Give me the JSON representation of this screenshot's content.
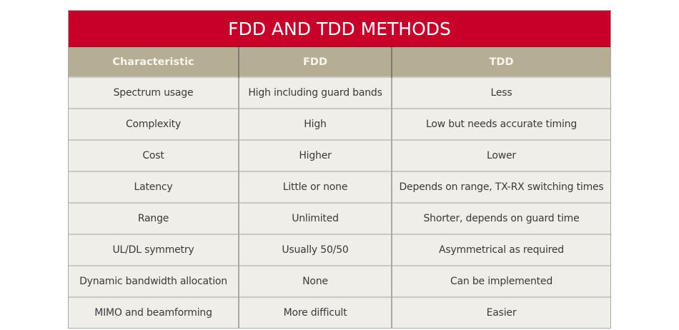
{
  "title": "FDD AND TDD METHODS",
  "colors": {
    "title_bg": "#c80029",
    "header_bg": "#b6ae94",
    "row_bg": "#efeee8"
  },
  "headers": [
    "Characteristic",
    "FDD",
    "TDD"
  ],
  "rows": [
    [
      "Spectrum usage",
      "High including guard bands",
      "Less"
    ],
    [
      "Complexity",
      "High",
      "Low but needs accurate timing"
    ],
    [
      "Cost",
      "Higher",
      "Lower"
    ],
    [
      "Latency",
      "Little or none",
      "Depends on range, TX-RX switching times"
    ],
    [
      "Range",
      "Unlimited",
      "Shorter, depends on guard time"
    ],
    [
      "UL/DL symmetry",
      "Usually 50/50",
      "Asymmetrical as required"
    ],
    [
      "Dynamic bandwidth allocation",
      "None",
      "Can be implemented"
    ],
    [
      "MIMO and beamforming",
      "More difficult",
      "Easier"
    ]
  ]
}
